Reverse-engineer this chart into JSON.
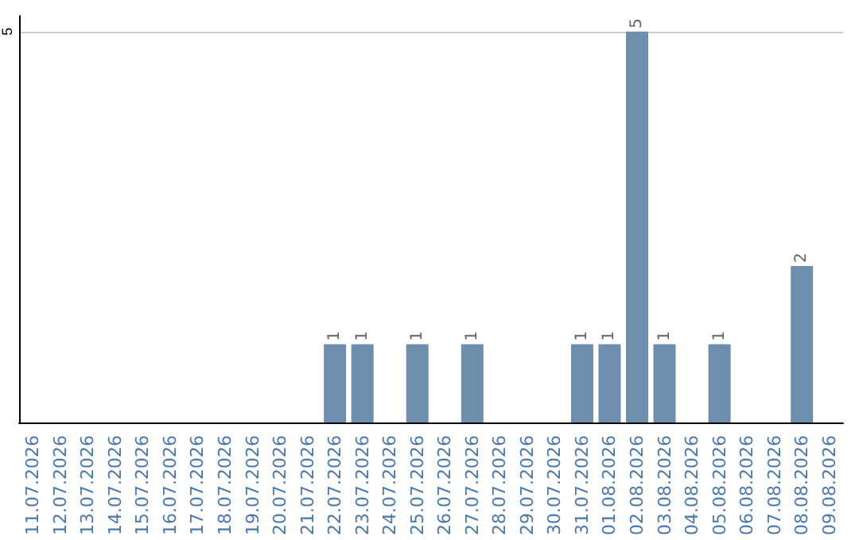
{
  "chart_data": {
    "type": "bar",
    "categories": [
      "11.07.2026",
      "12.07.2026",
      "13.07.2026",
      "14.07.2026",
      "15.07.2026",
      "16.07.2026",
      "17.07.2026",
      "18.07.2026",
      "19.07.2026",
      "20.07.2026",
      "21.07.2026",
      "22.07.2026",
      "23.07.2026",
      "24.07.2026",
      "25.07.2026",
      "26.07.2026",
      "27.07.2026",
      "28.07.2026",
      "29.07.2026",
      "30.07.2026",
      "31.07.2026",
      "01.08.2026",
      "02.08.2026",
      "03.08.2026",
      "04.08.2026",
      "05.08.2026",
      "06.08.2026",
      "07.08.2026",
      "08.08.2026",
      "09.08.2026"
    ],
    "values": [
      null,
      null,
      null,
      null,
      null,
      null,
      null,
      null,
      null,
      null,
      null,
      1,
      1,
      null,
      1,
      null,
      1,
      null,
      null,
      null,
      1,
      1,
      5,
      1,
      null,
      1,
      null,
      null,
      2,
      null
    ],
    "color": "#6e8eae",
    "ylim": [
      0,
      5.2
    ],
    "yticks": [
      5
    ],
    "grid": "y",
    "data_labels": true
  }
}
